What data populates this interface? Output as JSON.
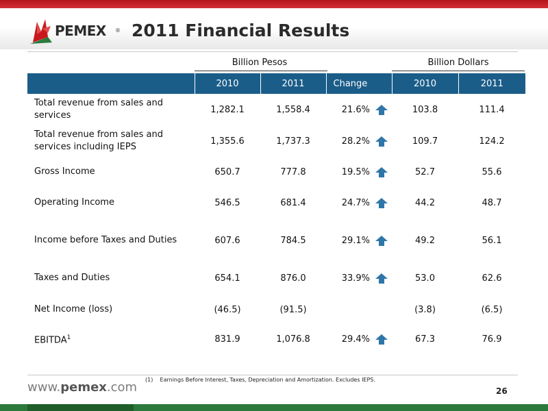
{
  "brand": {
    "logo_text": "PEMEX",
    "registered": "®",
    "url_pre": "www.",
    "url_brand": "pemex",
    "url_post": ".com"
  },
  "title": "2011 Financial Results",
  "groups": {
    "pesos": "Billion Pesos",
    "dollars": "Billion Dollars"
  },
  "columns": {
    "label": "",
    "p2010": "2010",
    "p2011": "2011",
    "change": "Change",
    "d2010": "2010",
    "d2011": "2011"
  },
  "rows": [
    {
      "label": "Total revenue from sales and services",
      "p2010": "1,282.1",
      "p2011": "1,558.4",
      "change": "21.6%",
      "arrow": "up",
      "d2010": "103.8",
      "d2011": "111.4"
    },
    {
      "label": "Total revenue from sales and services including IEPS",
      "p2010": "1,355.6",
      "p2011": "1,737.3",
      "change": "28.2%",
      "arrow": "up",
      "d2010": "109.7",
      "d2011": "124.2"
    },
    {
      "label": "Gross Income",
      "p2010": "650.7",
      "p2011": "777.8",
      "change": "19.5%",
      "arrow": "up",
      "d2010": "52.7",
      "d2011": "55.6"
    },
    {
      "label": "Operating Income",
      "p2010": "546.5",
      "p2011": "681.4",
      "change": "24.7%",
      "arrow": "up",
      "d2010": "44.2",
      "d2011": "48.7"
    },
    {
      "label": "Income before Taxes and Duties",
      "p2010": "607.6",
      "p2011": "784.5",
      "change": "29.1%",
      "arrow": "up",
      "d2010": "49.2",
      "d2011": "56.1"
    },
    {
      "label": "Taxes and Duties",
      "p2010": "654.1",
      "p2011": "876.0",
      "change": "33.9%",
      "arrow": "up",
      "d2010": "53.0",
      "d2011": "62.6"
    },
    {
      "label": "Net Income (loss)",
      "p2010": "(46.5)",
      "p2011": "(91.5)",
      "change": "",
      "arrow": "none",
      "d2010": "(3.8)",
      "d2011": "(6.5)"
    },
    {
      "label": "EBITDA",
      "sup": "1",
      "p2010": "831.9",
      "p2011": "1,076.8",
      "change": "29.4%",
      "arrow": "up",
      "d2010": "67.3",
      "d2011": "76.9"
    }
  ],
  "footnote": {
    "marker": "(1)",
    "text": "Earnings Before Interest, Taxes, Depreciation and Amortization. Excludes IEPS."
  },
  "page_number": "26",
  "colors": {
    "header_blue": "#1b5d89",
    "arrow_blue": "#2f76a8",
    "red_bar": "#c21e24",
    "green_bar": "#2b7a3c"
  }
}
